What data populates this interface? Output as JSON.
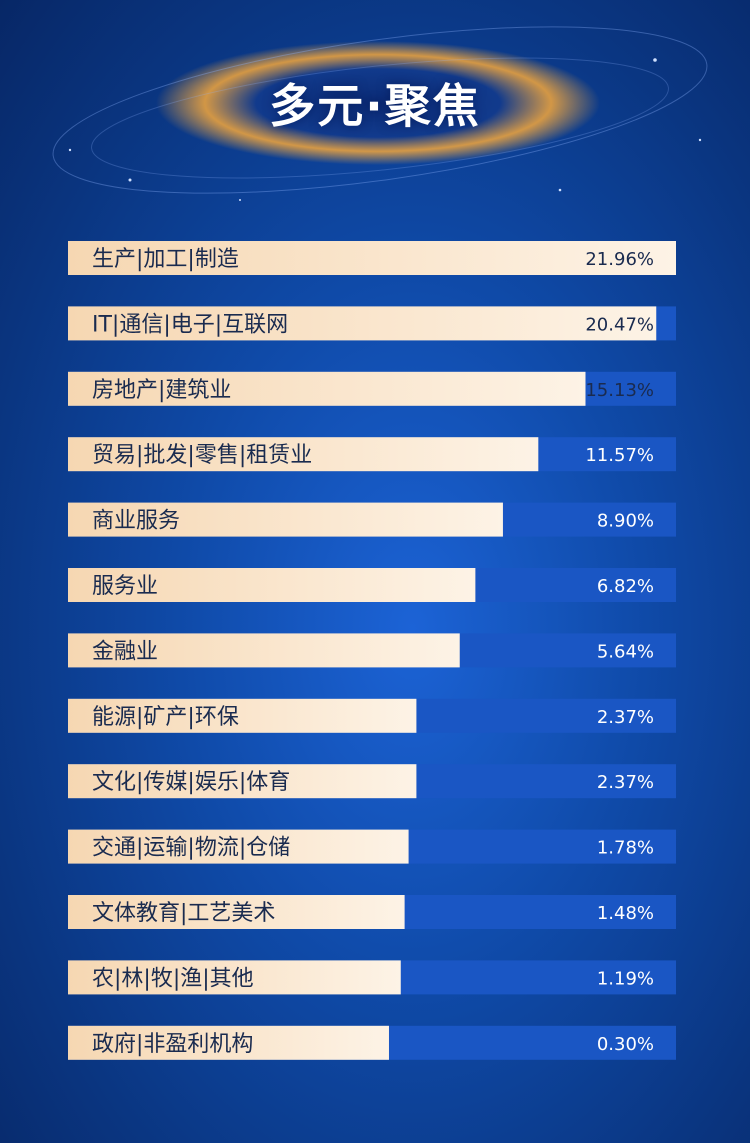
{
  "page": {
    "title": "多元·聚焦"
  },
  "colors": {
    "bar_fill_start": "#f6d7b2",
    "bar_fill_end": "#fdf3e6",
    "track": "#1a56c4",
    "label_text": "#1a2b4f",
    "value_text": "#ffffff",
    "glow": "#f5a73a"
  },
  "chart_data": {
    "type": "bar",
    "orientation": "horizontal",
    "title": "多元·聚焦",
    "unit": "%",
    "categories": [
      "生产|加工|制造",
      "IT|通信|电子|互联网",
      "房地产|建筑业",
      "贸易|批发|零售|租赁业",
      "商业服务",
      "服务业",
      "金融业",
      "能源|矿产|环保",
      "文化|传媒|娱乐|体育",
      "交通|运输|物流|仓储",
      "文体教育|工艺美术",
      "农|林|牧|渔|其他",
      "政府|非盈利机构"
    ],
    "values": [
      21.96,
      20.47,
      15.13,
      11.57,
      8.9,
      6.82,
      5.64,
      2.37,
      2.37,
      1.78,
      1.48,
      1.19,
      0.3
    ],
    "value_labels": [
      "21.96%",
      "20.47%",
      "15.13%",
      "11.57%",
      "8.90%",
      "6.82%",
      "5.64%",
      "2.37%",
      "2.37%",
      "1.78%",
      "1.48%",
      "1.19%",
      "0.30%"
    ],
    "grid": false,
    "legend": "none"
  }
}
